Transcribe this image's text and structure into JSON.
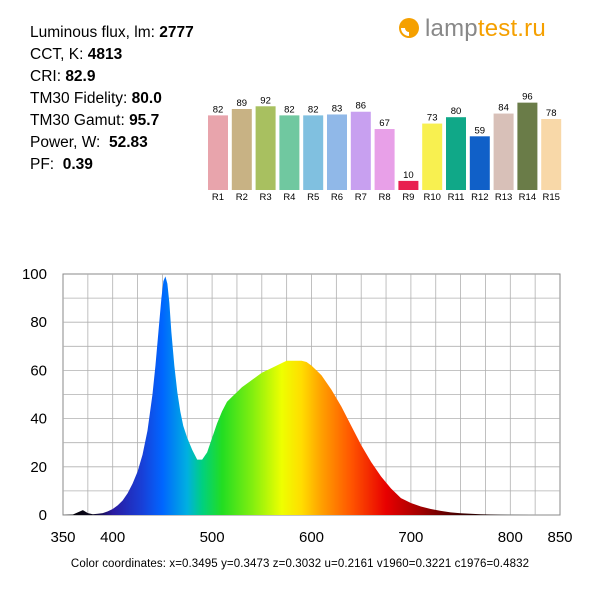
{
  "stats": [
    {
      "label": "Luminous flux, lm:",
      "value": "2777"
    },
    {
      "label": "CCT, K:",
      "value": "4813"
    },
    {
      "label": "CRI:",
      "value": "82.9"
    },
    {
      "label": "TM30 Fidelity:",
      "value": "80.0"
    },
    {
      "label": "TM30 Gamut:",
      "value": "95.7"
    },
    {
      "label": "Power, W:",
      "value": "52.83"
    },
    {
      "label": "PF:",
      "value": "0.39"
    }
  ],
  "logo": {
    "part1": "lamp",
    "part2": "test.ru",
    "color1": "#888888",
    "color2": "#f5a000",
    "icon": "bulb-icon"
  },
  "chart_data": [
    {
      "type": "bar",
      "categories": [
        "R1",
        "R2",
        "R3",
        "R4",
        "R5",
        "R6",
        "R7",
        "R8",
        "R9",
        "R10",
        "R11",
        "R12",
        "R13",
        "R14",
        "R15"
      ],
      "values": [
        82,
        89,
        92,
        82,
        82,
        83,
        86,
        67,
        10,
        73,
        80,
        59,
        84,
        96,
        78
      ],
      "colors": [
        "#e8a4ac",
        "#c8b284",
        "#a8c060",
        "#70c8a0",
        "#80c0e0",
        "#90b8e8",
        "#c8a0f0",
        "#e8a0e8",
        "#e82050",
        "#f8f050",
        "#10a888",
        "#1060c8",
        "#d8c0b8",
        "#6a7c48",
        "#f8d8a8"
      ],
      "ylim": [
        0,
        100
      ]
    },
    {
      "type": "area",
      "x": [
        350,
        360,
        370,
        375,
        380,
        385,
        390,
        395,
        400,
        405,
        410,
        415,
        420,
        425,
        430,
        435,
        440,
        443,
        446,
        449,
        451,
        453,
        455,
        457,
        459,
        462,
        465,
        468,
        471,
        475,
        480,
        485,
        490,
        495,
        500,
        505,
        510,
        515,
        520,
        525,
        530,
        540,
        550,
        560,
        570,
        575,
        580,
        585,
        590,
        595,
        600,
        605,
        610,
        620,
        630,
        640,
        650,
        660,
        670,
        680,
        690,
        700,
        710,
        720,
        730,
        740,
        750,
        760,
        770,
        780,
        790,
        800,
        820,
        850
      ],
      "y": [
        0,
        0.2,
        2,
        0.8,
        0.3,
        0.5,
        0.8,
        1.5,
        2.5,
        4,
        6,
        9,
        13,
        18,
        25,
        35,
        50,
        62,
        76,
        90,
        97,
        99,
        96,
        88,
        76,
        62,
        51,
        43,
        37,
        32,
        27,
        23,
        23,
        26,
        32,
        38,
        43,
        47,
        49,
        51,
        53,
        56,
        59,
        61,
        63,
        64,
        64,
        64,
        64,
        63.5,
        62,
        60,
        58,
        52,
        45,
        37,
        29,
        22,
        16,
        11,
        7,
        5,
        3.5,
        2.5,
        1.7,
        1.1,
        0.7,
        0.5,
        0.3,
        0.2,
        0.1,
        0.05,
        0,
        0
      ],
      "xlim": [
        350,
        850
      ],
      "ylim": [
        0,
        100
      ],
      "xticks": [
        350,
        400,
        500,
        600,
        700,
        800,
        850
      ],
      "yticks": [
        0,
        20,
        40,
        60,
        80,
        100
      ],
      "grid": true
    }
  ],
  "color_coordinates": "Color coordinates: x=0.3495 y=0.3473 z=0.3032 u=0.2161 v1960=0.3221 c1976=0.4832"
}
